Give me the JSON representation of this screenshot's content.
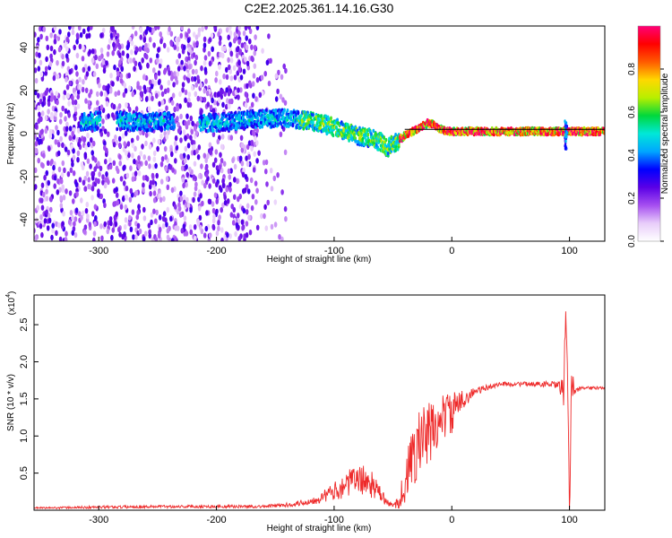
{
  "title": "C2E2.2025.361.14.16.G30",
  "chart_data": [
    {
      "type": "heatmap",
      "name": "spectrogram",
      "xlabel": "Height of straight line (km)",
      "ylabel": "Frequency (Hz)",
      "xlim": [
        -355,
        130
      ],
      "ylim": [
        -50,
        50
      ],
      "x_ticks": [
        -300,
        -200,
        -100,
        0,
        100
      ],
      "x_tick_labels": [
        "-300",
        "-200",
        "-100",
        "0",
        "100"
      ],
      "y_ticks": [
        -40,
        -20,
        0,
        20,
        40
      ],
      "y_tick_labels": [
        "-40",
        "-20",
        "0",
        "20",
        "40"
      ],
      "colorbar": {
        "label": "Normalized spectral amplitude",
        "range": [
          0,
          1
        ],
        "ticks": [
          0.0,
          0.2,
          0.4,
          0.6,
          0.8
        ],
        "tick_labels": [
          "0.0",
          "0.2",
          "0.4",
          "0.6",
          "0.8"
        ],
        "colors": [
          "#ffffff",
          "#e8cdfa",
          "#a64ff0",
          "#5a00e6",
          "#0000ff",
          "#00a6ff",
          "#00e8d8",
          "#00d83c",
          "#b8ef00",
          "#ffd800",
          "#ff5a00",
          "#ff0000",
          "#ff0078"
        ]
      },
      "noise_range_km": [
        -355,
        -165
      ],
      "ridge": {
        "x": [
          -315,
          -300,
          -280,
          -260,
          -240,
          -220,
          -200,
          -180,
          -160,
          -140,
          -120,
          -100,
          -90,
          -80,
          -70,
          -60,
          -55,
          -50,
          -45,
          -40,
          -30,
          -20,
          -15,
          -10,
          0,
          20,
          50,
          80,
          100,
          130
        ],
        "frequency": [
          5,
          6,
          6,
          5,
          6,
          5,
          5,
          6,
          7,
          7,
          6,
          3,
          1,
          -1,
          -2,
          -4,
          -7,
          -5,
          -3,
          -1,
          2,
          5,
          4,
          2,
          1,
          1,
          1,
          1,
          1,
          1
        ]
      },
      "reference_line": {
        "x": [
          -40,
          130
        ],
        "frequency": [
          2,
          2
        ]
      },
      "spike_km": 97
    },
    {
      "type": "line",
      "name": "snr",
      "xlabel": "Height of straight line (km)",
      "ylabel": "SNR (10 * v/v)",
      "multiplier_label": "(x10",
      "multiplier_exponent": "4",
      "multiplier_suffix": ")",
      "color": "#ee2a2a",
      "xlim": [
        -355,
        130
      ],
      "ylim": [
        0,
        2.9
      ],
      "x_ticks": [
        -300,
        -200,
        -100,
        0,
        100
      ],
      "x_tick_labels": [
        "-300",
        "-200",
        "-100",
        "0",
        "100"
      ],
      "y_ticks": [
        0.5,
        1.0,
        1.5,
        2.0,
        2.5
      ],
      "y_tick_labels": [
        "0.5",
        "1.0",
        "1.5",
        "2.0",
        "2.5"
      ],
      "series": [
        {
          "name": "SNR",
          "x": [
            -355,
            -300,
            -250,
            -200,
            -160,
            -140,
            -120,
            -110,
            -100,
            -90,
            -80,
            -70,
            -60,
            -55,
            -50,
            -45,
            -40,
            -35,
            -30,
            -25,
            -20,
            -15,
            -10,
            -5,
            0,
            5,
            10,
            20,
            30,
            40,
            50,
            60,
            70,
            80,
            90,
            95,
            97,
            100,
            102,
            105,
            110,
            120,
            130
          ],
          "y": [
            0.03,
            0.04,
            0.05,
            0.05,
            0.05,
            0.07,
            0.12,
            0.18,
            0.25,
            0.35,
            0.42,
            0.38,
            0.2,
            0.1,
            0.06,
            0.12,
            0.35,
            0.6,
            0.85,
            0.95,
            1.0,
            1.1,
            1.2,
            1.3,
            1.3,
            1.4,
            1.5,
            1.6,
            1.65,
            1.7,
            1.7,
            1.7,
            1.7,
            1.7,
            1.68,
            1.6,
            2.8,
            0.05,
            1.8,
            1.6,
            1.65,
            1.65,
            1.64
          ],
          "noise_amplitude": [
            0.01,
            0.02,
            0.02,
            0.02,
            0.02,
            0.03,
            0.05,
            0.08,
            0.12,
            0.18,
            0.2,
            0.2,
            0.1,
            0.05,
            0.03,
            0.1,
            0.3,
            0.45,
            0.45,
            0.5,
            0.45,
            0.4,
            0.35,
            0.3,
            0.3,
            0.2,
            0.12,
            0.06,
            0.04,
            0.03,
            0.03,
            0.03,
            0.03,
            0.04,
            0.05,
            0.2,
            0.2,
            0.3,
            0.3,
            0.05,
            0.02,
            0.02,
            0.02
          ]
        }
      ]
    }
  ]
}
